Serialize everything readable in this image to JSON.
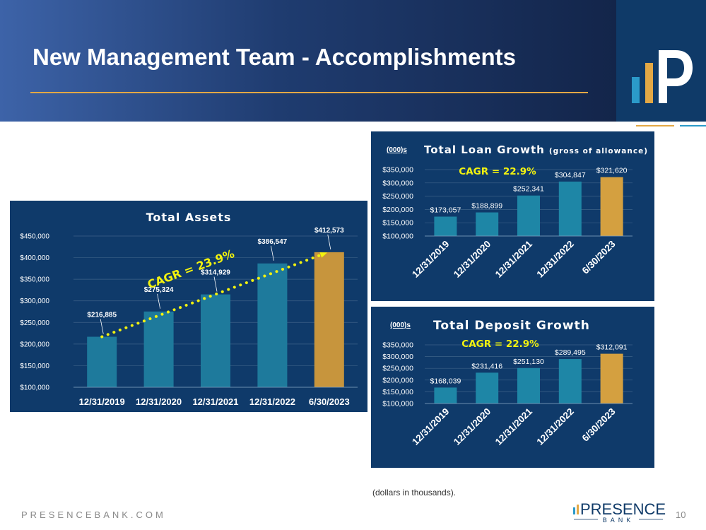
{
  "header": {
    "title": "New Management Team - Accomplishments",
    "colors": {
      "gold": "#e3a845",
      "teal": "#2b9ac9",
      "navy": "#0f3a68"
    }
  },
  "chart_data": [
    {
      "id": "assets",
      "type": "bar",
      "title": "Total Assets",
      "unit_label": "",
      "categories": [
        "12/31/2019",
        "12/31/2020",
        "12/31/2021",
        "12/31/2022",
        "6/30/2023"
      ],
      "values": [
        216885,
        275324,
        314929,
        386547,
        412573
      ],
      "value_labels": [
        "$216,885",
        "$275,324",
        "$314,929",
        "$386,547",
        "$412,573"
      ],
      "ylim": [
        100000,
        450000
      ],
      "yticks": [
        100000,
        150000,
        200000,
        250000,
        300000,
        350000,
        400000,
        450000
      ],
      "ytick_labels": [
        "$100,000",
        "$150,000",
        "$200,000",
        "$250,000",
        "$300,000",
        "$350,000",
        "$400,000",
        "$450,000"
      ],
      "grid": true,
      "cagr": "CAGR = 23.9%",
      "bar_color": "#1e7a9c",
      "highlight_color": "#c7953d",
      "rotated_labels": false
    },
    {
      "id": "loans",
      "type": "bar",
      "title": "Total Loan Growth",
      "subtitle": "(gross of allowance)",
      "unit_label": "(000)s",
      "categories": [
        "12/31/2019",
        "12/31/2020",
        "12/31/2021",
        "12/31/2022",
        "6/30/2023"
      ],
      "values": [
        173057,
        188899,
        252341,
        304847,
        321620
      ],
      "value_labels": [
        "$173,057",
        "$188,899",
        "$252,341",
        "$304,847",
        "$321,620"
      ],
      "ylim": [
        100000,
        350000
      ],
      "yticks": [
        100000,
        150000,
        200000,
        250000,
        300000,
        350000
      ],
      "ytick_labels": [
        "$100,000",
        "$150,000",
        "$200,000",
        "$250,000",
        "$300,000",
        "$350,000"
      ],
      "grid": true,
      "cagr": "CAGR = 22.9%",
      "bar_color": "#1e86a6",
      "highlight_color": "#d4a040",
      "rotated_labels": true
    },
    {
      "id": "deposits",
      "type": "bar",
      "title": "Total Deposit Growth",
      "subtitle": "",
      "unit_label": "(000)s",
      "categories": [
        "12/31/2019",
        "12/31/2020",
        "12/31/2021",
        "12/31/2022",
        "6/30/2023"
      ],
      "values": [
        168039,
        231416,
        251130,
        289495,
        312091
      ],
      "value_labels": [
        "$168,039",
        "$231,416",
        "$251,130",
        "$289,495",
        "$312,091"
      ],
      "ylim": [
        100000,
        350000
      ],
      "yticks": [
        100000,
        150000,
        200000,
        250000,
        300000,
        350000
      ],
      "ytick_labels": [
        "$100,000",
        "$150,000",
        "$200,000",
        "$250,000",
        "$300,000",
        "$350,000"
      ],
      "grid": true,
      "cagr": "CAGR = 22.9%",
      "bar_color": "#1e86a6",
      "highlight_color": "#d4a040",
      "rotated_labels": true
    }
  ],
  "footer": {
    "url": "PRESENCEBANK.COM",
    "note": "(dollars in thousands).",
    "brand": "PRESENCE",
    "brand_sub": "BANK",
    "page_number": "10"
  }
}
